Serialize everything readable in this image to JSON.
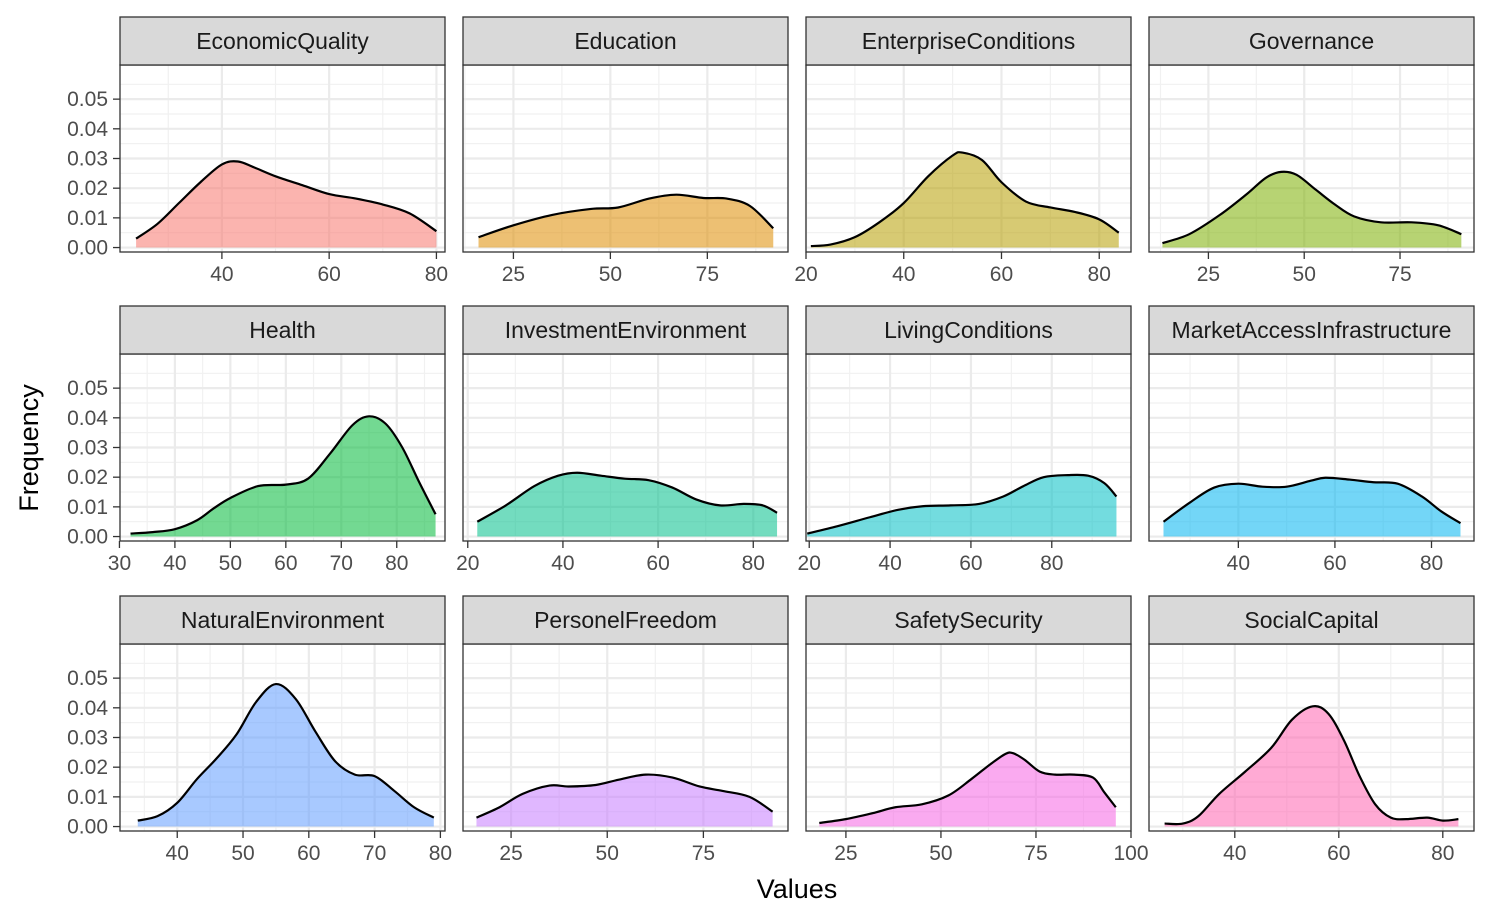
{
  "chart_data": {
    "type": "area",
    "xlabel": "Values",
    "ylabel": "Frequency",
    "y_ticks": [
      "0.00",
      "0.01",
      "0.02",
      "0.03",
      "0.04",
      "0.05"
    ],
    "y_values": [
      0,
      0.01,
      0.02,
      0.03,
      0.04,
      0.05
    ],
    "ylim": [
      -0.0015,
      0.0615
    ],
    "grid": true,
    "panels": [
      {
        "name": "EconomicQuality",
        "color": "#F8766D",
        "xlim": [
          21.0,
          81.6
        ],
        "x_ticks": [
          "40",
          "60",
          "80"
        ],
        "x_tick_values": [
          40,
          60,
          80
        ],
        "x": [
          24,
          28,
          32,
          36,
          40,
          43,
          46,
          50,
          55,
          60,
          65,
          70,
          75,
          80
        ],
        "y": [
          0.003,
          0.008,
          0.015,
          0.022,
          0.028,
          0.029,
          0.027,
          0.024,
          0.021,
          0.018,
          0.0165,
          0.0145,
          0.0115,
          0.0055
        ]
      },
      {
        "name": "Education",
        "color": "#DE8C00",
        "xlim": [
          12.0,
          95.8
        ],
        "x_ticks": [
          "25",
          "50",
          "75"
        ],
        "x_tick_values": [
          25,
          50,
          75
        ],
        "x": [
          16,
          25,
          35,
          45,
          52,
          60,
          67,
          74,
          80,
          86,
          92
        ],
        "y": [
          0.0035,
          0.0075,
          0.011,
          0.013,
          0.0135,
          0.0165,
          0.0178,
          0.0167,
          0.0165,
          0.014,
          0.0065
        ]
      },
      {
        "name": "EnterpriseConditions",
        "color": "#B79F00",
        "xlim": [
          20.0,
          86.5
        ],
        "x_ticks": [
          "20",
          "40",
          "60",
          "80"
        ],
        "x_tick_values": [
          20,
          40,
          60,
          80
        ],
        "x": [
          21,
          25,
          30,
          35,
          40,
          45,
          50,
          52,
          56,
          60,
          65,
          70,
          75,
          80,
          84
        ],
        "y": [
          0.0005,
          0.001,
          0.0035,
          0.0085,
          0.015,
          0.024,
          0.031,
          0.032,
          0.0295,
          0.022,
          0.0155,
          0.0135,
          0.012,
          0.0095,
          0.005
        ]
      },
      {
        "name": "Governance",
        "color": "#7CAE00",
        "xlim": [
          9.5,
          94.3
        ],
        "x_ticks": [
          "25",
          "50",
          "75"
        ],
        "x_tick_values": [
          25,
          50,
          75
        ],
        "x": [
          13,
          20,
          28,
          35,
          40,
          44,
          48,
          53,
          58,
          63,
          70,
          78,
          85,
          91
        ],
        "y": [
          0.0015,
          0.0045,
          0.011,
          0.018,
          0.0235,
          0.0255,
          0.0245,
          0.0195,
          0.0145,
          0.0105,
          0.0085,
          0.0085,
          0.0075,
          0.0045
        ]
      },
      {
        "name": "Health",
        "color": "#00BA38",
        "xlim": [
          30.1,
          88.7
        ],
        "x_ticks": [
          "30",
          "40",
          "50",
          "60",
          "70",
          "80"
        ],
        "x_tick_values": [
          30,
          40,
          50,
          60,
          70,
          80
        ],
        "x": [
          32,
          36,
          40,
          44,
          47,
          50,
          55,
          60,
          64,
          68,
          72,
          75,
          78,
          81,
          84,
          87
        ],
        "y": [
          0.001,
          0.0015,
          0.0025,
          0.0055,
          0.0095,
          0.013,
          0.017,
          0.0175,
          0.0195,
          0.028,
          0.0375,
          0.0405,
          0.038,
          0.03,
          0.0185,
          0.0075
        ]
      },
      {
        "name": "InvestmentEnvironment",
        "color": "#00C08B",
        "xlim": [
          19.0,
          87.3
        ],
        "x_ticks": [
          "20",
          "40",
          "60",
          "80"
        ],
        "x_tick_values": [
          20,
          40,
          60,
          80
        ],
        "x": [
          22,
          28,
          34,
          39,
          43,
          48,
          53,
          58,
          63,
          68,
          73,
          78,
          82,
          85
        ],
        "y": [
          0.005,
          0.0105,
          0.017,
          0.0205,
          0.0215,
          0.0205,
          0.0195,
          0.019,
          0.0165,
          0.0125,
          0.0105,
          0.011,
          0.0105,
          0.008
        ]
      },
      {
        "name": "LivingConditions",
        "color": "#00BFC4",
        "xlim": [
          19.2,
          99.6
        ],
        "x_ticks": [
          "20",
          "40",
          "60",
          "80"
        ],
        "x_tick_values": [
          20,
          40,
          60,
          80
        ],
        "x": [
          19.5,
          27,
          35,
          42,
          48,
          55,
          62,
          68,
          73,
          78,
          84,
          89,
          93,
          96
        ],
        "y": [
          0.001,
          0.0035,
          0.0065,
          0.009,
          0.0102,
          0.0105,
          0.011,
          0.0135,
          0.017,
          0.02,
          0.0207,
          0.0205,
          0.018,
          0.0135
        ]
      },
      {
        "name": "MarketAccessInfrastructure",
        "color": "#00B4F0",
        "xlim": [
          21.5,
          88.8
        ],
        "x_ticks": [
          "40",
          "60",
          "80"
        ],
        "x_tick_values": [
          40,
          60,
          80
        ],
        "x": [
          24.5,
          30,
          35,
          40,
          45,
          50,
          55,
          58,
          63,
          68,
          73,
          78,
          82,
          86
        ],
        "y": [
          0.005,
          0.0115,
          0.0165,
          0.0178,
          0.0168,
          0.0168,
          0.0188,
          0.0198,
          0.0192,
          0.0183,
          0.0178,
          0.0135,
          0.0085,
          0.0045
        ]
      },
      {
        "name": "NaturalEnvironment",
        "color": "#619CFF",
        "xlim": [
          31.3,
          80.7
        ],
        "x_ticks": [
          "40",
          "50",
          "60",
          "70",
          "80"
        ],
        "x_tick_values": [
          40,
          50,
          60,
          70,
          80
        ],
        "x": [
          34,
          37,
          40,
          43,
          46,
          49,
          52,
          55,
          58,
          61,
          64,
          67,
          70,
          73,
          76,
          79
        ],
        "y": [
          0.002,
          0.0035,
          0.008,
          0.016,
          0.023,
          0.031,
          0.042,
          0.048,
          0.043,
          0.032,
          0.022,
          0.0175,
          0.017,
          0.012,
          0.0065,
          0.003
        ]
      },
      {
        "name": "PersonelFreedom",
        "color": "#C77CFF",
        "xlim": [
          12.5,
          97.0
        ],
        "x_ticks": [
          "25",
          "50",
          "75"
        ],
        "x_tick_values": [
          25,
          50,
          75
        ],
        "x": [
          16,
          22,
          28,
          35,
          40,
          47,
          53,
          60,
          67,
          74,
          80,
          87,
          93
        ],
        "y": [
          0.003,
          0.0065,
          0.011,
          0.0138,
          0.0135,
          0.014,
          0.0158,
          0.0175,
          0.0165,
          0.0135,
          0.012,
          0.01,
          0.005
        ]
      },
      {
        "name": "SafetySecurity",
        "color": "#F564E3",
        "xlim": [
          14.5,
          100.0
        ],
        "x_ticks": [
          "25",
          "50",
          "75",
          "100"
        ],
        "x_tick_values": [
          25,
          50,
          75,
          100
        ],
        "x": [
          18,
          25,
          32,
          38,
          45,
          52,
          58,
          63,
          67,
          69,
          72,
          76,
          80,
          85,
          90,
          93,
          96
        ],
        "y": [
          0.0012,
          0.0025,
          0.0045,
          0.0065,
          0.0075,
          0.0105,
          0.016,
          0.021,
          0.0245,
          0.0247,
          0.0225,
          0.0185,
          0.0175,
          0.0175,
          0.0165,
          0.0115,
          0.0065
        ]
      },
      {
        "name": "SocialCapital",
        "color": "#FF64B0",
        "xlim": [
          23.5,
          86.0
        ],
        "x_ticks": [
          "40",
          "60",
          "80"
        ],
        "x_tick_values": [
          40,
          60,
          80
        ],
        "x": [
          26.5,
          30,
          33,
          37,
          42,
          47,
          51,
          55,
          58,
          61,
          64,
          67,
          70,
          73,
          77,
          80,
          83
        ],
        "y": [
          0.001,
          0.001,
          0.0035,
          0.011,
          0.0185,
          0.0265,
          0.036,
          0.0405,
          0.038,
          0.029,
          0.017,
          0.0075,
          0.003,
          0.0025,
          0.003,
          0.002,
          0.0025
        ]
      }
    ]
  }
}
